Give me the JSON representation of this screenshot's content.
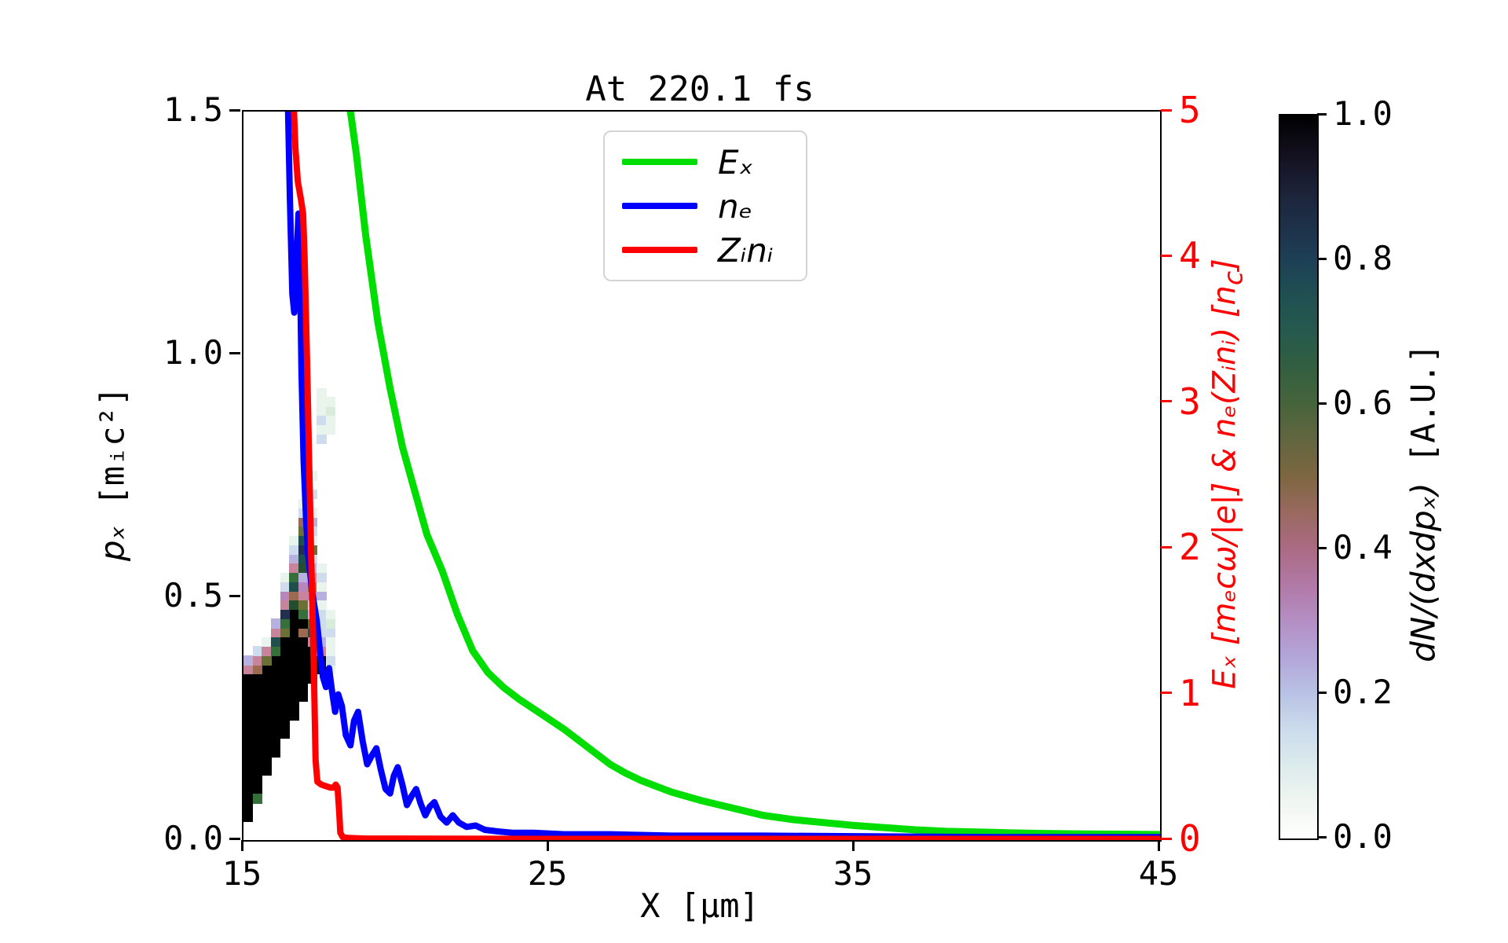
{
  "title": "At 220.1 fs",
  "chart_data": {
    "type": "composite",
    "subtype": "2D phase-space histogram with line profiles (PIC simulation diagnostics)",
    "title": "At 220.1 fs",
    "grid": false,
    "x_axis": {
      "label": "X [μm]",
      "range": [
        15,
        45
      ],
      "ticks": [
        "15",
        "25",
        "35",
        "45"
      ]
    },
    "y_left": {
      "label_math": "pₓ",
      "label_unit": " [mᵢc²]",
      "range": [
        0,
        1.5
      ],
      "ticks": [
        "1.5",
        "1.0",
        "0.5",
        "0.0"
      ],
      "color": "#000000"
    },
    "y_right": {
      "label_pre": "Eₓ [mₑcω/|e|] & nₑ(Zᵢnᵢ) [n",
      "label_sub": "c",
      "label_post": "]",
      "range": [
        0,
        5
      ],
      "ticks": [
        "5",
        "4",
        "3",
        "2",
        "1",
        "0"
      ],
      "color": "#ff0000"
    },
    "legend": {
      "position": "upper center",
      "items": [
        {
          "label": "Eₓ",
          "color": "#00dd00"
        },
        {
          "label": "nₑ",
          "color": "#0000ff"
        },
        {
          "label": "Zᵢnᵢ",
          "color": "#ff0000"
        }
      ]
    },
    "series": [
      {
        "name": "Ex",
        "axis": "right",
        "color": "#00dd00",
        "width": 9,
        "x": [
          18.45,
          18.7,
          19.0,
          19.4,
          19.8,
          20.2,
          20.6,
          21.0,
          21.5,
          22.0,
          22.5,
          23.0,
          23.5,
          24.0,
          24.5,
          25.0,
          25.5,
          26.0,
          26.5,
          27.0,
          27.5,
          28.0,
          28.5,
          29.0,
          30.0,
          31.0,
          32.0,
          33.0,
          34.0,
          35.0,
          36.0,
          37.0,
          38.0,
          39.0,
          40.0,
          41.0,
          42.0,
          43.0,
          44.0,
          45.0
        ],
        "y": [
          5.08,
          4.7,
          4.15,
          3.55,
          3.1,
          2.7,
          2.4,
          2.1,
          1.85,
          1.55,
          1.3,
          1.15,
          1.05,
          0.97,
          0.9,
          0.83,
          0.76,
          0.68,
          0.6,
          0.52,
          0.46,
          0.41,
          0.37,
          0.33,
          0.27,
          0.22,
          0.17,
          0.14,
          0.12,
          0.1,
          0.085,
          0.07,
          0.06,
          0.055,
          0.05,
          0.046,
          0.043,
          0.041,
          0.04,
          0.038
        ]
      },
      {
        "name": "ne",
        "axis": "right",
        "color": "#0000ff",
        "width": 8,
        "x": [
          16.44,
          16.52,
          16.6,
          16.66,
          16.74,
          16.8,
          16.85,
          16.9,
          16.97,
          17.05,
          17.12,
          17.25,
          17.4,
          17.5,
          17.6,
          17.7,
          17.8,
          17.9,
          18.0,
          18.1,
          18.22,
          18.35,
          18.5,
          18.62,
          18.75,
          18.9,
          19.05,
          19.2,
          19.35,
          19.5,
          19.65,
          19.8,
          19.92,
          20.05,
          20.2,
          20.35,
          20.5,
          20.65,
          20.8,
          20.95,
          21.1,
          21.25,
          21.45,
          21.65,
          21.85,
          22.05,
          22.3,
          22.6,
          22.9,
          23.3,
          23.8,
          24.5,
          25.5,
          27.0,
          29.0,
          32.0,
          36.0,
          40.0,
          45.0
        ],
        "y": [
          5.2,
          4.4,
          3.75,
          3.62,
          4.0,
          4.3,
          3.9,
          3.2,
          2.6,
          2.2,
          1.95,
          1.7,
          1.5,
          1.3,
          1.12,
          1.05,
          1.18,
          1.02,
          0.88,
          1.0,
          0.92,
          0.72,
          0.65,
          0.82,
          0.88,
          0.68,
          0.52,
          0.58,
          0.63,
          0.48,
          0.35,
          0.32,
          0.44,
          0.5,
          0.38,
          0.24,
          0.3,
          0.35,
          0.25,
          0.17,
          0.23,
          0.26,
          0.16,
          0.12,
          0.17,
          0.12,
          0.09,
          0.1,
          0.07,
          0.06,
          0.05,
          0.05,
          0.04,
          0.04,
          0.03,
          0.03,
          0.025,
          0.02,
          0.02
        ]
      },
      {
        "name": "Zini",
        "axis": "right",
        "color": "#ff0000",
        "width": 8,
        "x": [
          16.62,
          16.7,
          16.78,
          16.88,
          16.95,
          17.0,
          17.08,
          17.15,
          17.22,
          17.3,
          17.36,
          17.42,
          17.55,
          17.7,
          17.85,
          17.95,
          18.02,
          18.08,
          18.13,
          18.17,
          18.25,
          18.4,
          19.0,
          20.0,
          25.0,
          30.0,
          40.0,
          45.0
        ],
        "y": [
          5.2,
          4.75,
          4.52,
          4.4,
          4.3,
          4.0,
          3.3,
          2.6,
          1.9,
          1.2,
          0.55,
          0.4,
          0.38,
          0.37,
          0.36,
          0.36,
          0.38,
          0.36,
          0.2,
          0.05,
          0.02,
          0.015,
          0.01,
          0.01,
          0.008,
          0.008,
          0.008,
          0.008
        ]
      }
    ],
    "histogram": {
      "description": "2D electron phase-space density dN/(dxdpx), cubehelix_r colormap, white=0 black=1",
      "x0": 15.0,
      "dx": 0.3,
      "p0": 0.0,
      "dp": 0.019,
      "palette": {
        "b": "#000000",
        "n": "#22304f",
        "t": "#1f4f4c",
        "g": "#35703a",
        "G": "#234f2e",
        "o": "#6b7034",
        "w": "#9b6a50",
        "p": "#c8849b",
        "m": "#b886bd",
        "l": "#b7b1e0",
        "B": "#cfdcee",
        "M": "#e9f4ec",
        "P": "#d9ecd9"
      },
      "black_runs": [
        [
          0,
          2,
          17
        ],
        [
          1,
          5,
          17
        ],
        [
          2,
          7,
          18
        ],
        [
          3,
          9,
          19
        ],
        [
          4,
          11,
          21
        ],
        [
          5,
          13,
          24
        ],
        [
          6,
          15,
          21
        ],
        [
          7,
          17,
          20
        ],
        [
          8,
          18,
          19
        ]
      ],
      "cells": [
        [
          0,
          18,
          "p"
        ],
        [
          0,
          19,
          "l"
        ],
        [
          1,
          4,
          "g"
        ],
        [
          1,
          18,
          "w"
        ],
        [
          1,
          19,
          "p"
        ],
        [
          1,
          20,
          "B"
        ],
        [
          2,
          19,
          "o"
        ],
        [
          2,
          20,
          "p"
        ],
        [
          2,
          21,
          "M"
        ],
        [
          3,
          20,
          "g"
        ],
        [
          3,
          21,
          "t"
        ],
        [
          3,
          22,
          "p"
        ],
        [
          3,
          23,
          "l"
        ],
        [
          4,
          22,
          "o"
        ],
        [
          4,
          23,
          "g"
        ],
        [
          4,
          24,
          "n"
        ],
        [
          4,
          25,
          "p"
        ],
        [
          4,
          26,
          "m"
        ],
        [
          4,
          27,
          "B"
        ],
        [
          4,
          28,
          "M"
        ],
        [
          5,
          25,
          "G"
        ],
        [
          5,
          26,
          "w"
        ],
        [
          5,
          27,
          "t"
        ],
        [
          5,
          28,
          "g"
        ],
        [
          5,
          29,
          "p"
        ],
        [
          5,
          30,
          "l"
        ],
        [
          5,
          31,
          "B"
        ],
        [
          5,
          32,
          "M"
        ],
        [
          6,
          22,
          "w"
        ],
        [
          6,
          23,
          "b"
        ],
        [
          6,
          24,
          "g"
        ],
        [
          6,
          25,
          "o"
        ],
        [
          6,
          26,
          "p"
        ],
        [
          6,
          27,
          "m"
        ],
        [
          6,
          28,
          "l"
        ],
        [
          6,
          29,
          "G"
        ],
        [
          6,
          30,
          "t"
        ],
        [
          6,
          31,
          "n"
        ],
        [
          6,
          32,
          "t"
        ],
        [
          6,
          33,
          "o"
        ],
        [
          6,
          34,
          "w"
        ],
        [
          6,
          35,
          "B"
        ],
        [
          6,
          36,
          "M"
        ],
        [
          7,
          21,
          "p"
        ],
        [
          7,
          22,
          "t"
        ],
        [
          7,
          23,
          "g"
        ],
        [
          7,
          24,
          "l"
        ],
        [
          7,
          25,
          "B"
        ],
        [
          7,
          26,
          "m"
        ],
        [
          7,
          27,
          "w"
        ],
        [
          7,
          28,
          "p"
        ],
        [
          7,
          29,
          "l"
        ],
        [
          7,
          30,
          "B"
        ],
        [
          7,
          31,
          "o"
        ],
        [
          7,
          32,
          "M"
        ],
        [
          7,
          33,
          "B"
        ],
        [
          7,
          34,
          "l"
        ],
        [
          7,
          35,
          "M"
        ],
        [
          7,
          37,
          "B"
        ],
        [
          7,
          39,
          "M"
        ],
        [
          8,
          20,
          "p"
        ],
        [
          8,
          21,
          "l"
        ],
        [
          8,
          22,
          "B"
        ],
        [
          8,
          23,
          "B"
        ],
        [
          8,
          24,
          "B"
        ],
        [
          8,
          25,
          "M"
        ],
        [
          8,
          26,
          "l"
        ],
        [
          8,
          27,
          "M"
        ],
        [
          8,
          28,
          "B"
        ],
        [
          8,
          29,
          "M"
        ],
        [
          8,
          43,
          "B"
        ],
        [
          8,
          44,
          "M"
        ],
        [
          8,
          45,
          "B"
        ],
        [
          8,
          46,
          "M"
        ],
        [
          8,
          47,
          "M"
        ],
        [
          8,
          48,
          "M"
        ],
        [
          9,
          18,
          "M"
        ],
        [
          9,
          19,
          "B"
        ],
        [
          9,
          20,
          "M"
        ],
        [
          9,
          21,
          "M"
        ],
        [
          9,
          22,
          "B"
        ],
        [
          9,
          23,
          "P"
        ],
        [
          9,
          24,
          "M"
        ],
        [
          9,
          44,
          "M"
        ],
        [
          9,
          45,
          "M"
        ],
        [
          9,
          46,
          "P"
        ],
        [
          9,
          47,
          "M"
        ]
      ]
    },
    "colorbar": {
      "label_math": "dN/(dxdpₓ)",
      "label_unit": " [A.U.]",
      "ticks": [
        "1.0",
        "0.8",
        "0.6",
        "0.4",
        "0.2",
        "0.0"
      ],
      "range": [
        0,
        1
      ],
      "stops": [
        [
          "0.00",
          "#ffffff"
        ],
        [
          "0.05",
          "#f0f6f1"
        ],
        [
          "0.10",
          "#dcebec"
        ],
        [
          "0.15",
          "#ccdcec"
        ],
        [
          "0.20",
          "#b9c2e4"
        ],
        [
          "0.25",
          "#b3a6d9"
        ],
        [
          "0.30",
          "#b48fc4"
        ],
        [
          "0.35",
          "#b179a6"
        ],
        [
          "0.40",
          "#aa6b84"
        ],
        [
          "0.45",
          "#9a6960"
        ],
        [
          "0.50",
          "#7d6741"
        ],
        [
          "0.55",
          "#636640"
        ],
        [
          "0.60",
          "#47643c"
        ],
        [
          "0.65",
          "#335f40"
        ],
        [
          "0.70",
          "#265a4e"
        ],
        [
          "0.75",
          "#205052"
        ],
        [
          "0.80",
          "#1d4055"
        ],
        [
          "0.85",
          "#1d3048"
        ],
        [
          "0.90",
          "#1b2136"
        ],
        [
          "0.95",
          "#120f1d"
        ],
        [
          "1.00",
          "#000000"
        ]
      ]
    }
  }
}
